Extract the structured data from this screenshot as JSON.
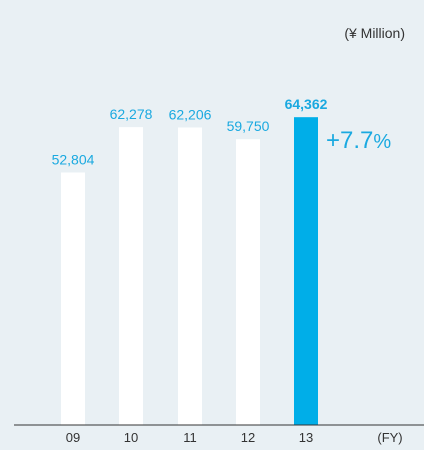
{
  "chart_data": {
    "type": "bar",
    "unit": "(¥ Million)",
    "x_unit": "(FY)",
    "categories": [
      "09",
      "10",
      "11",
      "12",
      "13"
    ],
    "values": [
      52804,
      62278,
      62206,
      59750,
      64362
    ],
    "value_labels": [
      "52,804",
      "62,278",
      "62,206",
      "59,750",
      "64,362"
    ],
    "highlight_index": 4,
    "growth_label": {
      "value": "+7.7",
      "unit": "%"
    },
    "ylim": [
      0,
      69000
    ],
    "grid": false,
    "colors": {
      "background": "#e9f0f4",
      "bar": "#ffffff",
      "highlight_bar": "#00aee8",
      "accent_text": "#1aa9e0",
      "highlight_tick": "#1aa9e0",
      "text": "#333333",
      "axis": "#333333"
    }
  }
}
